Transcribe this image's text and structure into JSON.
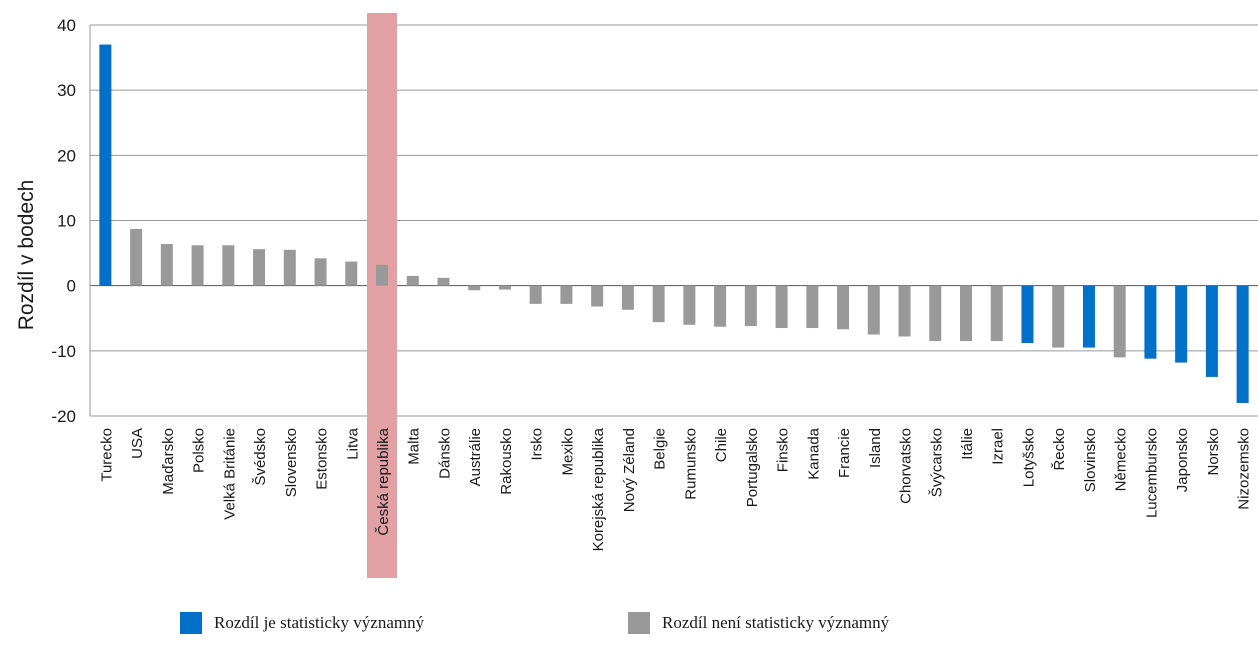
{
  "chart_data": {
    "type": "bar",
    "ylabel": "Rozdíl v bodech",
    "ylim": [
      -20,
      40
    ],
    "yticks": [
      -20,
      -10,
      0,
      10,
      20,
      30,
      40
    ],
    "grid": true,
    "highlight_category": "Česká republika",
    "highlight_color": "#e0a0a4",
    "colors": {
      "significant": "#0070c9",
      "not_significant": "#999999"
    },
    "legend": {
      "significant_label": "Rozdíl je statisticky významný",
      "not_significant_label": "Rozdíl není statisticky významný",
      "placement": "bottom"
    },
    "categories": [
      "Turecko",
      "USA",
      "Maďarsko",
      "Polsko",
      "Velká Británie",
      "Švédsko",
      "Slovensko",
      "Estonsko",
      "Litva",
      "Česká republika",
      "Malta",
      "Dánsko",
      "Austrálie",
      "Rakousko",
      "Irsko",
      "Mexiko",
      "Korejská republika",
      "Nový Zéland",
      "Belgie",
      "Rumunsko",
      "Chile",
      "Portugalsko",
      "Finsko",
      "Kanada",
      "Francie",
      "Island",
      "Chorvatsko",
      "Švýcarsko",
      "Itálie",
      "Izrael",
      "Lotyšsko",
      "Řecko",
      "Slovinsko",
      "Německo",
      "Lucembursko",
      "Japonsko",
      "Norsko",
      "Nizozemsko"
    ],
    "values": [
      37,
      8.7,
      6.4,
      6.2,
      6.2,
      5.6,
      5.5,
      4.2,
      3.7,
      3.2,
      1.5,
      1.2,
      -0.7,
      -0.6,
      -2.8,
      -2.8,
      -3.2,
      -3.7,
      -5.6,
      -6,
      -6.3,
      -6.2,
      -6.5,
      -6.5,
      -6.7,
      -7.5,
      -7.8,
      -8.5,
      -8.5,
      -8.5,
      -8.8,
      -9.5,
      -9.5,
      -11,
      -11.2,
      -11.8,
      -14,
      -18
    ],
    "significant": [
      true,
      false,
      false,
      false,
      false,
      false,
      false,
      false,
      false,
      false,
      false,
      false,
      false,
      false,
      false,
      false,
      false,
      false,
      false,
      false,
      false,
      false,
      false,
      false,
      false,
      false,
      false,
      false,
      false,
      false,
      true,
      false,
      true,
      false,
      true,
      true,
      true,
      true
    ]
  }
}
